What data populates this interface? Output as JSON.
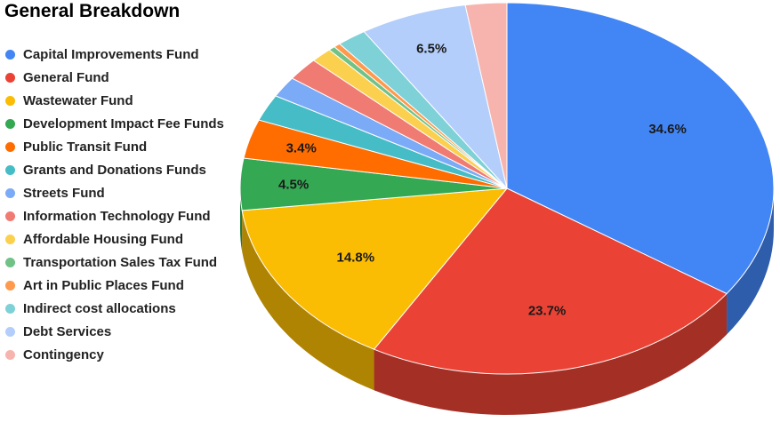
{
  "chart_data": {
    "type": "pie",
    "title": "General Breakdown",
    "legend_position": "left",
    "slices": [
      {
        "label": "Capital Improvements Fund",
        "value": 34.6,
        "value_label": "34.6%",
        "color": "#4285f4"
      },
      {
        "label": "General Fund",
        "value": 23.7,
        "value_label": "23.7%",
        "color": "#ea4335"
      },
      {
        "label": "Wastewater Fund",
        "value": 14.8,
        "value_label": "14.8%",
        "color": "#fbbc04"
      },
      {
        "label": "Development Impact Fee Funds",
        "value": 4.5,
        "value_label": "4.5%",
        "color": "#34a853"
      },
      {
        "label": "Public Transit Fund",
        "value": 3.4,
        "value_label": "3.4%",
        "color": "#ff6d01"
      },
      {
        "label": "Grants and Donations Funds",
        "value": 2.3,
        "value_label": "",
        "color": "#46bdc6"
      },
      {
        "label": "Streets Fund",
        "value": 1.8,
        "value_label": "",
        "color": "#7baaf7"
      },
      {
        "label": "Information Technology Fund",
        "value": 2.0,
        "value_label": "",
        "color": "#f07b72"
      },
      {
        "label": "Affordable Housing Fund",
        "value": 1.3,
        "value_label": "",
        "color": "#fcd04f"
      },
      {
        "label": "Transportation Sales Tax Fund",
        "value": 0.4,
        "value_label": "",
        "color": "#71c287"
      },
      {
        "label": "Art in Public Places Fund",
        "value": 0.4,
        "value_label": "",
        "color": "#ff994d"
      },
      {
        "label": "Indirect cost allocations",
        "value": 1.8,
        "value_label": "",
        "color": "#7ed1d7"
      },
      {
        "label": "Debt Services",
        "value": 6.5,
        "value_label": "6.5%",
        "color": "#b3cefb"
      },
      {
        "label": "Contingency",
        "value": 2.5,
        "value_label": "",
        "color": "#f7b4ae"
      }
    ]
  }
}
